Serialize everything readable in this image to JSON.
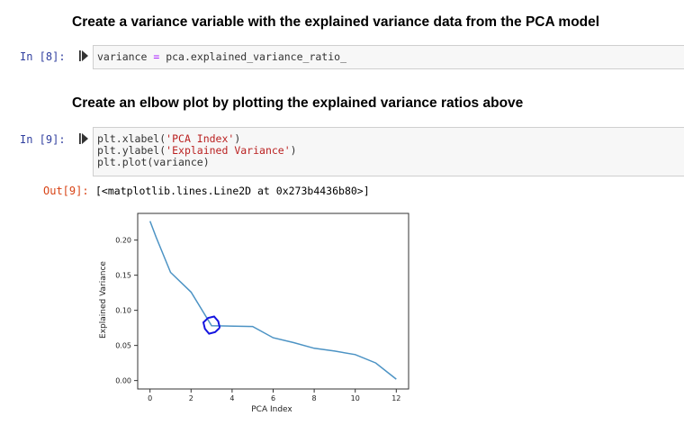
{
  "cells": {
    "md1": "Create a variance variable with the explained variance data from the PCA model",
    "in8_prompt": "In [8]:",
    "in8_code": {
      "lhs": "variance",
      "op": "=",
      "rhs": "pca.explained_variance_ratio_"
    },
    "md2": "Create an elbow plot by plotting the explained variance ratios above",
    "in9_prompt": "In [9]:",
    "in9_code": {
      "l1_pre": "plt.xlabel(",
      "l1_str": "'PCA Index'",
      "l1_post": ")",
      "l2_pre": "plt.ylabel(",
      "l2_str": "'Explained Variance'",
      "l2_post": ")",
      "l3": "plt.plot(variance)"
    },
    "out9_prompt": "Out[9]:",
    "out9_text": "[<matplotlib.lines.Line2D at 0x273b4436b80>]"
  },
  "colors": {
    "line": "#4c93c4",
    "annotation": "#1515e0",
    "in_prompt": "#303f9f",
    "out_prompt": "#d84315"
  },
  "chart_data": {
    "type": "line",
    "xlabel": "PCA Index",
    "ylabel": "Explained Variance",
    "xlim": [
      -0.6,
      12.6
    ],
    "ylim": [
      -0.012,
      0.238
    ],
    "xticks": [
      0,
      2,
      4,
      6,
      8,
      10,
      12
    ],
    "yticks": [
      0.0,
      0.05,
      0.1,
      0.15,
      0.2
    ],
    "ytick_labels": [
      "0.00",
      "0.05",
      "0.10",
      "0.15",
      "0.20"
    ],
    "x": [
      0,
      0.3,
      1,
      2,
      3,
      5,
      6,
      7,
      8,
      9,
      10,
      11,
      12
    ],
    "y": [
      0.227,
      0.204,
      0.154,
      0.126,
      0.078,
      0.077,
      0.061,
      0.054,
      0.046,
      0.042,
      0.037,
      0.025,
      0.002
    ],
    "annotation": {
      "type": "hand-drawn-circle",
      "x": 3,
      "y": 0.079
    },
    "grid": false,
    "legend": "none"
  }
}
